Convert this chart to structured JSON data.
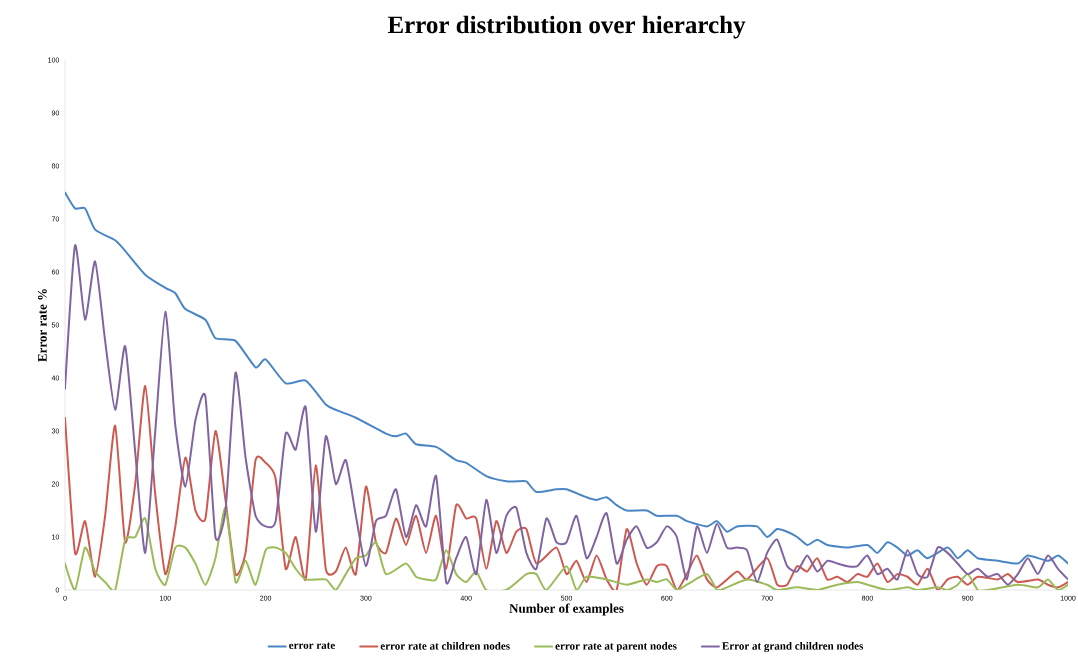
{
  "chart_data": {
    "type": "line",
    "title": "Error distribution over hierarchy",
    "xlabel": "Number of examples",
    "ylabel": "Error rate %",
    "xlim": [
      0,
      1000
    ],
    "xticks": [
      0,
      100,
      200,
      300,
      400,
      500,
      600,
      700,
      800,
      900,
      1000
    ],
    "ylim": [
      0,
      100
    ],
    "yticks": [
      0,
      10,
      20,
      30,
      40,
      50,
      60,
      70,
      80,
      90,
      100
    ],
    "grid": false,
    "legend": "bottom",
    "marker": "none",
    "line_style": "solid",
    "series": [
      {
        "name": "error rate",
        "color": "#4a86c5",
        "x": [
          0,
          10,
          20,
          30,
          50,
          60,
          80,
          100,
          110,
          120,
          140,
          150,
          170,
          190,
          200,
          220,
          240,
          260,
          270,
          290,
          320,
          330,
          340,
          350,
          370,
          390,
          400,
          420,
          440,
          450,
          460,
          470,
          490,
          500,
          520,
          530,
          540,
          550,
          560,
          580,
          590,
          610,
          620,
          640,
          650,
          660,
          670,
          690,
          700,
          710,
          720,
          730,
          740,
          750,
          760,
          780,
          800,
          810,
          820,
          830,
          840,
          850,
          860,
          880,
          890,
          900,
          910,
          930,
          950,
          960,
          980,
          990,
          1000
        ],
        "values": [
          75,
          72,
          72,
          68,
          66,
          64,
          59.5,
          57,
          56,
          53,
          51,
          47.5,
          47,
          42,
          43.5,
          39,
          39.5,
          35,
          34,
          32.5,
          29.5,
          29,
          29.5,
          27.5,
          27,
          24.5,
          24,
          21.5,
          20.5,
          20.5,
          20.5,
          18.5,
          19,
          19,
          17.5,
          17,
          17.5,
          16,
          15,
          15,
          14,
          14,
          13,
          12,
          13,
          11,
          12,
          12,
          10,
          11.5,
          11,
          10,
          8.5,
          9.5,
          8.5,
          8,
          8.5,
          7,
          9,
          8,
          6.5,
          7.5,
          6,
          8,
          6,
          7.5,
          6,
          5.5,
          5,
          6.5,
          5.5,
          6.5,
          5
        ]
      },
      {
        "name": "error rate at children nodes",
        "color": "#cc5a50",
        "x": [
          0,
          10,
          20,
          30,
          40,
          50,
          60,
          70,
          80,
          90,
          100,
          110,
          120,
          130,
          140,
          150,
          160,
          170,
          180,
          190,
          200,
          210,
          220,
          230,
          240,
          250,
          260,
          270,
          280,
          290,
          300,
          310,
          320,
          330,
          340,
          350,
          360,
          370,
          380,
          390,
          400,
          410,
          420,
          430,
          440,
          450,
          460,
          470,
          490,
          500,
          510,
          520,
          530,
          540,
          550,
          560,
          570,
          580,
          590,
          600,
          610,
          620,
          630,
          640,
          650,
          670,
          680,
          700,
          710,
          720,
          730,
          740,
          750,
          760,
          770,
          780,
          790,
          800,
          810,
          820,
          830,
          840,
          850,
          860,
          870,
          880,
          890,
          900,
          910,
          930,
          940,
          950,
          970,
          980,
          990,
          1000
        ],
        "values": [
          32.5,
          7,
          13,
          2.5,
          14,
          31,
          9,
          20,
          38.5,
          18,
          3,
          12,
          25,
          15,
          13.5,
          30,
          17,
          3,
          7,
          24.5,
          24,
          21,
          4,
          10,
          2,
          23.5,
          4,
          3.5,
          8,
          3,
          19.5,
          9,
          7,
          13.5,
          8.5,
          14,
          7,
          14,
          4,
          16,
          13.5,
          13.5,
          4,
          13,
          7,
          11,
          11.5,
          5,
          8,
          3,
          5.5,
          1.5,
          6.5,
          2,
          0,
          11.5,
          5,
          1,
          4.5,
          4.5,
          0,
          3,
          6.5,
          2,
          0.5,
          3.5,
          2,
          6,
          1,
          1,
          4.5,
          3.5,
          6,
          2,
          2.5,
          1.5,
          3,
          2.5,
          5,
          1.5,
          3,
          2.5,
          1,
          4,
          0,
          2,
          2.5,
          1,
          2.5,
          2,
          3,
          1.5,
          2,
          1,
          0.5,
          1.5
        ]
      },
      {
        "name": "error rate at parent nodes",
        "color": "#9bbb59",
        "x": [
          0,
          10,
          20,
          30,
          40,
          50,
          60,
          70,
          80,
          90,
          100,
          110,
          120,
          130,
          140,
          150,
          160,
          170,
          180,
          190,
          200,
          210,
          220,
          230,
          240,
          260,
          270,
          280,
          290,
          300,
          310,
          320,
          340,
          350,
          360,
          370,
          380,
          390,
          400,
          410,
          420,
          440,
          460,
          470,
          480,
          500,
          510,
          520,
          540,
          560,
          580,
          590,
          600,
          610,
          620,
          640,
          650,
          660,
          680,
          700,
          710,
          730,
          750,
          770,
          790,
          800,
          820,
          840,
          850,
          870,
          880,
          890,
          900,
          910,
          920,
          950,
          970,
          980,
          990,
          1000
        ],
        "values": [
          5,
          0,
          8,
          3.5,
          1.5,
          0,
          9.5,
          10,
          13.5,
          4,
          1,
          8,
          8,
          5,
          1,
          6,
          15.5,
          1.5,
          5.5,
          1,
          7.5,
          8,
          7,
          4,
          2,
          2,
          0,
          3,
          6,
          6.5,
          9,
          3,
          5,
          2.5,
          2,
          2,
          7.5,
          3,
          1.5,
          3.5,
          0,
          0,
          3,
          3,
          0,
          4.5,
          0,
          2.5,
          2,
          1,
          2,
          1.5,
          2,
          0,
          1,
          3,
          0,
          0.5,
          2,
          1,
          0,
          0.5,
          0,
          1,
          1.5,
          1,
          0,
          0.5,
          0,
          0.5,
          0,
          1,
          3,
          0,
          0,
          1,
          0.5,
          2,
          0,
          1
        ]
      },
      {
        "name": "Error at grand children nodes",
        "color": "#8064a2",
        "x": [
          0,
          10,
          20,
          30,
          40,
          50,
          60,
          70,
          80,
          90,
          100,
          110,
          120,
          130,
          140,
          150,
          160,
          170,
          180,
          190,
          200,
          210,
          220,
          230,
          240,
          250,
          260,
          270,
          280,
          290,
          300,
          310,
          320,
          330,
          340,
          350,
          360,
          370,
          380,
          390,
          400,
          410,
          420,
          430,
          440,
          450,
          460,
          470,
          480,
          490,
          500,
          510,
          520,
          530,
          540,
          550,
          560,
          570,
          580,
          590,
          600,
          610,
          620,
          630,
          640,
          650,
          660,
          670,
          680,
          690,
          700,
          710,
          720,
          730,
          740,
          750,
          760,
          770,
          780,
          790,
          800,
          810,
          820,
          830,
          840,
          850,
          860,
          870,
          880,
          890,
          900,
          910,
          920,
          930,
          940,
          950,
          960,
          970,
          980,
          990,
          1000
        ],
        "values": [
          38,
          65,
          51,
          62,
          47,
          34,
          46,
          26,
          7,
          30,
          52.5,
          31,
          19.5,
          32,
          36.5,
          10,
          15,
          41,
          25,
          14,
          12,
          13,
          29.5,
          26.5,
          34.5,
          11,
          29,
          20,
          24.5,
          14,
          4.5,
          13,
          14,
          19,
          10,
          16,
          12,
          21.5,
          1.5,
          6,
          10,
          3,
          17,
          7,
          14,
          15.5,
          7,
          4,
          13.5,
          9,
          9,
          14,
          6,
          10,
          14.5,
          5,
          9.5,
          12,
          8,
          9,
          12,
          10,
          2,
          12,
          7,
          12.5,
          8,
          8,
          7.5,
          1.5,
          7,
          9.5,
          4.5,
          3.5,
          6.5,
          3.5,
          5.5,
          5,
          4.5,
          4.5,
          6.5,
          3,
          4,
          2,
          7.5,
          3,
          2.5,
          8,
          7,
          5,
          3,
          4,
          2.5,
          3,
          1,
          3,
          6,
          3,
          6.5,
          4,
          2
        ]
      }
    ]
  }
}
